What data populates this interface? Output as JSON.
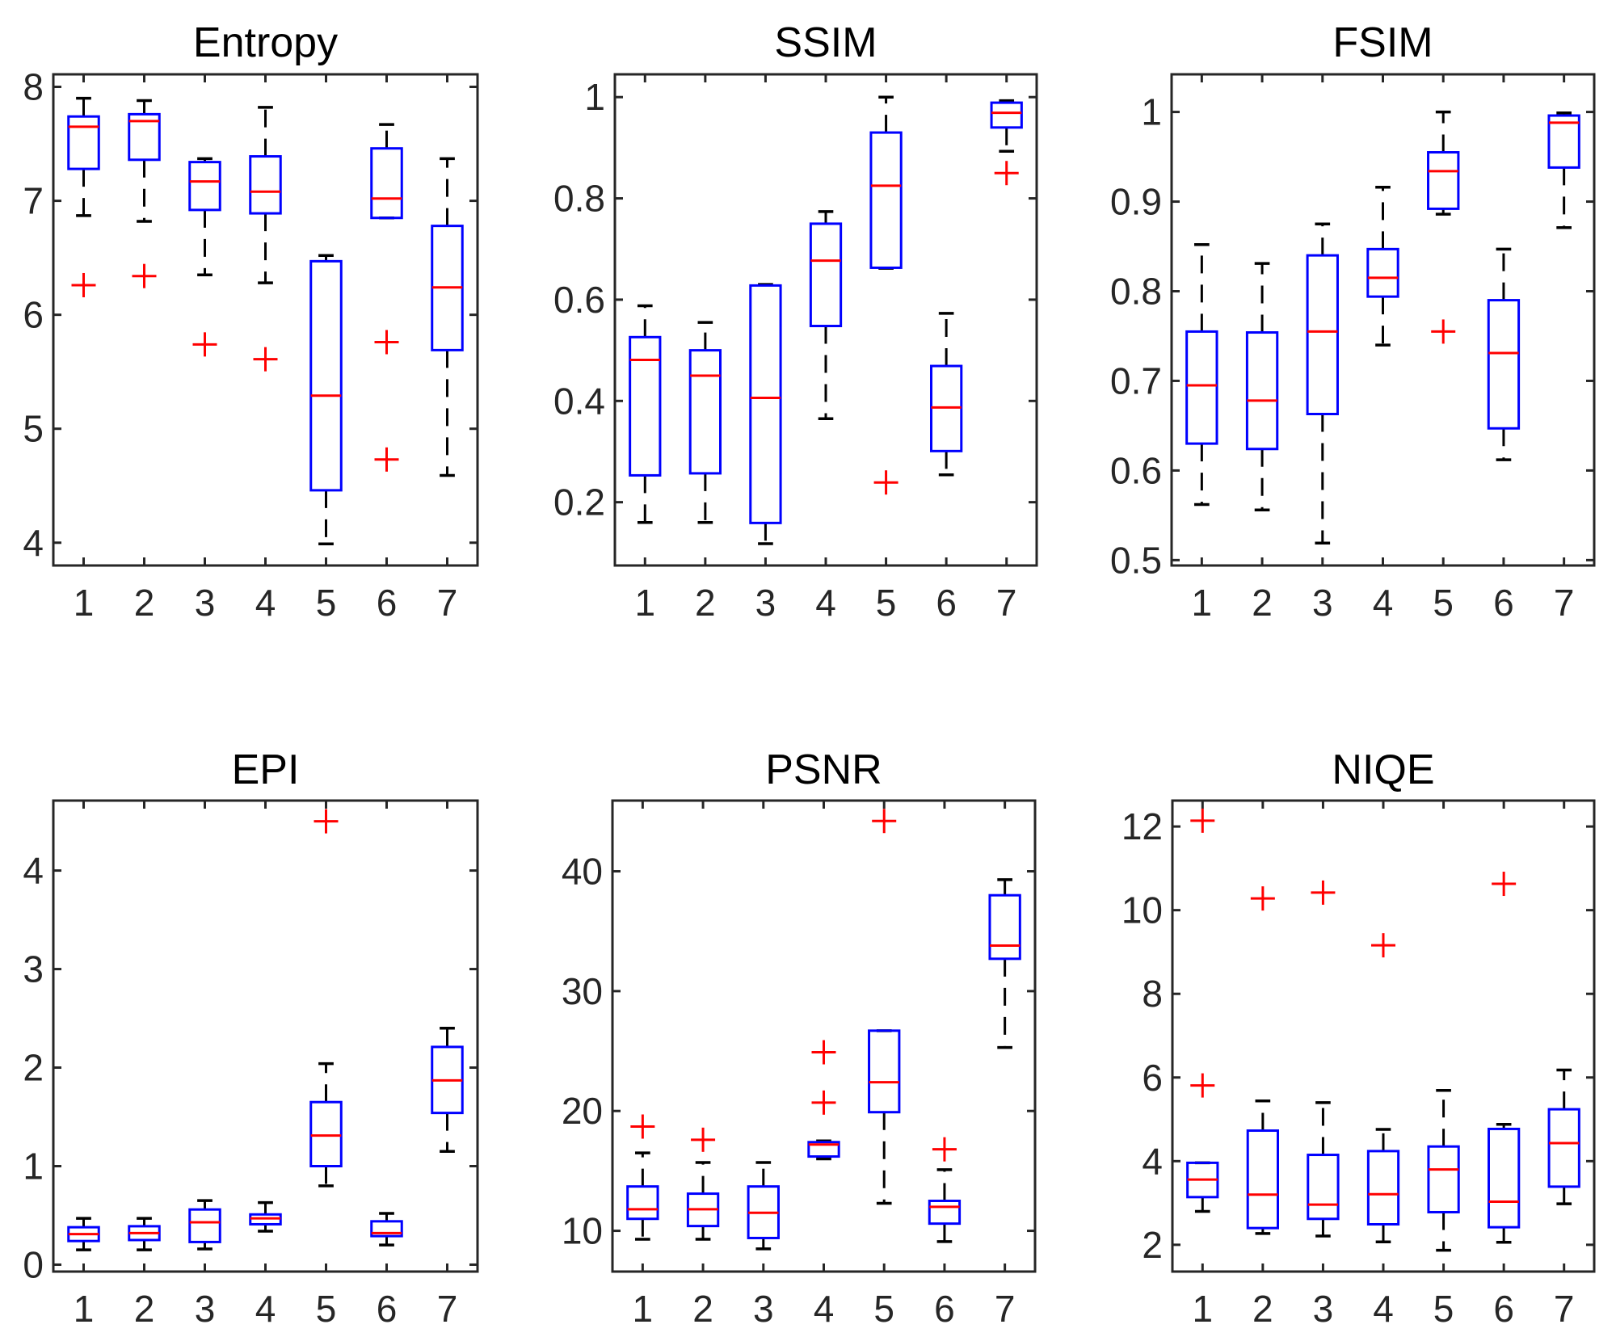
{
  "chart_data": [
    {
      "type": "box",
      "title": "Entropy",
      "xlabel": "",
      "ylabel": "",
      "categories": [
        "1",
        "2",
        "3",
        "4",
        "5",
        "6",
        "7"
      ],
      "ylim": [
        3.8,
        8.11
      ],
      "yticks": [
        4,
        5,
        6,
        7,
        8
      ],
      "ytick_labels": [
        "4",
        "5",
        "6",
        "7",
        "8"
      ],
      "grid": false,
      "boxes": [
        {
          "whisker_low": 6.87,
          "q1": 7.28,
          "median": 7.65,
          "q3": 7.74,
          "whisker_high": 7.9,
          "outliers": [
            6.26
          ]
        },
        {
          "whisker_low": 6.82,
          "q1": 7.36,
          "median": 7.7,
          "q3": 7.76,
          "whisker_high": 7.88,
          "outliers": [
            6.34
          ]
        },
        {
          "whisker_low": 6.35,
          "q1": 6.92,
          "median": 7.17,
          "q3": 7.34,
          "whisker_high": 7.37,
          "outliers": [
            5.74
          ]
        },
        {
          "whisker_low": 6.28,
          "q1": 6.89,
          "median": 7.08,
          "q3": 7.39,
          "whisker_high": 7.82,
          "outliers": [
            5.61
          ]
        },
        {
          "whisker_low": 3.99,
          "q1": 4.46,
          "median": 5.29,
          "q3": 6.47,
          "whisker_high": 6.52,
          "outliers": []
        },
        {
          "whisker_low": 6.85,
          "q1": 6.85,
          "median": 7.02,
          "q3": 7.46,
          "whisker_high": 7.67,
          "outliers": [
            5.76,
            4.73
          ]
        },
        {
          "whisker_low": 4.59,
          "q1": 5.69,
          "median": 6.24,
          "q3": 6.78,
          "whisker_high": 7.37,
          "outliers": []
        }
      ]
    },
    {
      "type": "box",
      "title": "SSIM",
      "xlabel": "",
      "ylabel": "",
      "categories": [
        "1",
        "2",
        "3",
        "4",
        "5",
        "6",
        "7"
      ],
      "ylim": [
        0.075,
        1.045
      ],
      "yticks": [
        0.2,
        0.4,
        0.6,
        0.8,
        1.0
      ],
      "ytick_labels": [
        "0.2",
        "0.4",
        "0.6",
        "0.8",
        "1"
      ],
      "grid": false,
      "boxes": [
        {
          "whisker_low": 0.16,
          "q1": 0.253,
          "median": 0.481,
          "q3": 0.526,
          "whisker_high": 0.588,
          "outliers": []
        },
        {
          "whisker_low": 0.16,
          "q1": 0.257,
          "median": 0.45,
          "q3": 0.5,
          "whisker_high": 0.555,
          "outliers": []
        },
        {
          "whisker_low": 0.118,
          "q1": 0.159,
          "median": 0.406,
          "q3": 0.628,
          "whisker_high": 0.63,
          "outliers": []
        },
        {
          "whisker_low": 0.365,
          "q1": 0.548,
          "median": 0.677,
          "q3": 0.75,
          "whisker_high": 0.774,
          "outliers": []
        },
        {
          "whisker_low": 0.662,
          "q1": 0.663,
          "median": 0.825,
          "q3": 0.93,
          "whisker_high": 1.0,
          "outliers": [
            0.239
          ]
        },
        {
          "whisker_low": 0.254,
          "q1": 0.301,
          "median": 0.387,
          "q3": 0.469,
          "whisker_high": 0.573,
          "outliers": []
        },
        {
          "whisker_low": 0.893,
          "q1": 0.94,
          "median": 0.969,
          "q3": 0.989,
          "whisker_high": 0.993,
          "outliers": [
            0.85
          ]
        }
      ]
    },
    {
      "type": "box",
      "title": "FSIM",
      "xlabel": "",
      "ylabel": "",
      "categories": [
        "1",
        "2",
        "3",
        "4",
        "5",
        "6",
        "7"
      ],
      "ylim": [
        0.494,
        1.042
      ],
      "yticks": [
        0.5,
        0.6,
        0.7,
        0.8,
        0.9,
        1.0
      ],
      "ytick_labels": [
        "0.5",
        "0.6",
        "0.7",
        "0.8",
        "0.9",
        "1"
      ],
      "grid": false,
      "boxes": [
        {
          "whisker_low": 0.562,
          "q1": 0.63,
          "median": 0.695,
          "q3": 0.755,
          "whisker_high": 0.852,
          "outliers": []
        },
        {
          "whisker_low": 0.556,
          "q1": 0.624,
          "median": 0.678,
          "q3": 0.754,
          "whisker_high": 0.831,
          "outliers": []
        },
        {
          "whisker_low": 0.519,
          "q1": 0.663,
          "median": 0.755,
          "q3": 0.84,
          "whisker_high": 0.875,
          "outliers": []
        },
        {
          "whisker_low": 0.74,
          "q1": 0.794,
          "median": 0.815,
          "q3": 0.847,
          "whisker_high": 0.916,
          "outliers": []
        },
        {
          "whisker_low": 0.886,
          "q1": 0.892,
          "median": 0.934,
          "q3": 0.955,
          "whisker_high": 1.0,
          "outliers": [
            0.755
          ]
        },
        {
          "whisker_low": 0.612,
          "q1": 0.647,
          "median": 0.731,
          "q3": 0.79,
          "whisker_high": 0.847,
          "outliers": []
        },
        {
          "whisker_low": 0.871,
          "q1": 0.938,
          "median": 0.988,
          "q3": 0.996,
          "whisker_high": 0.999,
          "outliers": []
        }
      ]
    },
    {
      "type": "box",
      "title": "EPI",
      "xlabel": "",
      "ylabel": "",
      "categories": [
        "1",
        "2",
        "3",
        "4",
        "5",
        "6",
        "7"
      ],
      "ylim": [
        -0.07,
        4.71
      ],
      "yticks": [
        0,
        1,
        2,
        3,
        4
      ],
      "ytick_labels": [
        "0",
        "1",
        "2",
        "3",
        "4"
      ],
      "grid": false,
      "boxes": [
        {
          "whisker_low": 0.15,
          "q1": 0.24,
          "median": 0.31,
          "q3": 0.38,
          "whisker_high": 0.47,
          "outliers": []
        },
        {
          "whisker_low": 0.15,
          "q1": 0.25,
          "median": 0.32,
          "q3": 0.39,
          "whisker_high": 0.47,
          "outliers": []
        },
        {
          "whisker_low": 0.16,
          "q1": 0.23,
          "median": 0.43,
          "q3": 0.56,
          "whisker_high": 0.65,
          "outliers": []
        },
        {
          "whisker_low": 0.34,
          "q1": 0.41,
          "median": 0.47,
          "q3": 0.51,
          "whisker_high": 0.63,
          "outliers": []
        },
        {
          "whisker_low": 0.8,
          "q1": 1.0,
          "median": 1.31,
          "q3": 1.65,
          "whisker_high": 2.04,
          "outliers": [
            4.5
          ]
        },
        {
          "whisker_low": 0.2,
          "q1": 0.29,
          "median": 0.32,
          "q3": 0.44,
          "whisker_high": 0.52,
          "outliers": []
        },
        {
          "whisker_low": 1.15,
          "q1": 1.54,
          "median": 1.87,
          "q3": 2.21,
          "whisker_high": 2.4,
          "outliers": []
        }
      ]
    },
    {
      "type": "box",
      "title": "PSNR",
      "xlabel": "",
      "ylabel": "",
      "categories": [
        "1",
        "2",
        "3",
        "4",
        "5",
        "6",
        "7"
      ],
      "ylim": [
        6.6,
        45.9
      ],
      "yticks": [
        10,
        20,
        30,
        40
      ],
      "ytick_labels": [
        "10",
        "20",
        "30",
        "40"
      ],
      "grid": false,
      "boxes": [
        {
          "whisker_low": 9.3,
          "q1": 11.0,
          "median": 11.8,
          "q3": 13.7,
          "whisker_high": 16.5,
          "outliers": [
            18.7
          ]
        },
        {
          "whisker_low": 9.3,
          "q1": 10.4,
          "median": 11.8,
          "q3": 13.1,
          "whisker_high": 15.7,
          "outliers": [
            17.6
          ]
        },
        {
          "whisker_low": 8.5,
          "q1": 9.4,
          "median": 11.5,
          "q3": 13.7,
          "whisker_high": 15.7,
          "outliers": []
        },
        {
          "whisker_low": 16.0,
          "q1": 16.2,
          "median": 17.2,
          "q3": 17.4,
          "whisker_high": 17.5,
          "outliers": [
            24.9,
            20.7
          ]
        },
        {
          "whisker_low": 12.3,
          "q1": 19.9,
          "median": 22.4,
          "q3": 26.7,
          "whisker_high": 26.7,
          "outliers": [
            44.2
          ]
        },
        {
          "whisker_low": 9.1,
          "q1": 10.6,
          "median": 12.0,
          "q3": 12.5,
          "whisker_high": 15.1,
          "outliers": [
            16.8
          ]
        },
        {
          "whisker_low": 25.3,
          "q1": 32.7,
          "median": 33.8,
          "q3": 38.0,
          "whisker_high": 39.3,
          "outliers": []
        }
      ]
    },
    {
      "type": "box",
      "title": "NIQE",
      "xlabel": "",
      "ylabel": "",
      "categories": [
        "1",
        "2",
        "3",
        "4",
        "5",
        "6",
        "7"
      ],
      "ylim": [
        1.36,
        12.62
      ],
      "yticks": [
        2,
        4,
        6,
        8,
        10,
        12
      ],
      "ytick_labels": [
        "2",
        "4",
        "6",
        "8",
        "10",
        "12"
      ],
      "grid": false,
      "boxes": [
        {
          "whisker_low": 2.8,
          "q1": 3.14,
          "median": 3.56,
          "q3": 3.96,
          "whisker_high": 3.96,
          "outliers": [
            12.14,
            5.81
          ]
        },
        {
          "whisker_low": 2.27,
          "q1": 2.4,
          "median": 3.2,
          "q3": 4.73,
          "whisker_high": 5.44,
          "outliers": [
            10.28
          ]
        },
        {
          "whisker_low": 2.21,
          "q1": 2.62,
          "median": 2.96,
          "q3": 4.15,
          "whisker_high": 5.4,
          "outliers": [
            10.42
          ]
        },
        {
          "whisker_low": 2.07,
          "q1": 2.49,
          "median": 3.21,
          "q3": 4.24,
          "whisker_high": 4.76,
          "outliers": [
            9.16
          ]
        },
        {
          "whisker_low": 1.87,
          "q1": 2.78,
          "median": 3.8,
          "q3": 4.35,
          "whisker_high": 5.69,
          "outliers": []
        },
        {
          "whisker_low": 2.06,
          "q1": 2.42,
          "median": 3.03,
          "q3": 4.77,
          "whisker_high": 4.88,
          "outliers": [
            10.63
          ]
        },
        {
          "whisker_low": 2.98,
          "q1": 3.39,
          "median": 4.43,
          "q3": 5.24,
          "whisker_high": 6.18,
          "outliers": []
        }
      ]
    }
  ],
  "colors": {
    "box": "#0000ff",
    "median": "#ff0000",
    "whisker": "#000000",
    "outlier": "#ff0000",
    "axes": "#262626"
  }
}
